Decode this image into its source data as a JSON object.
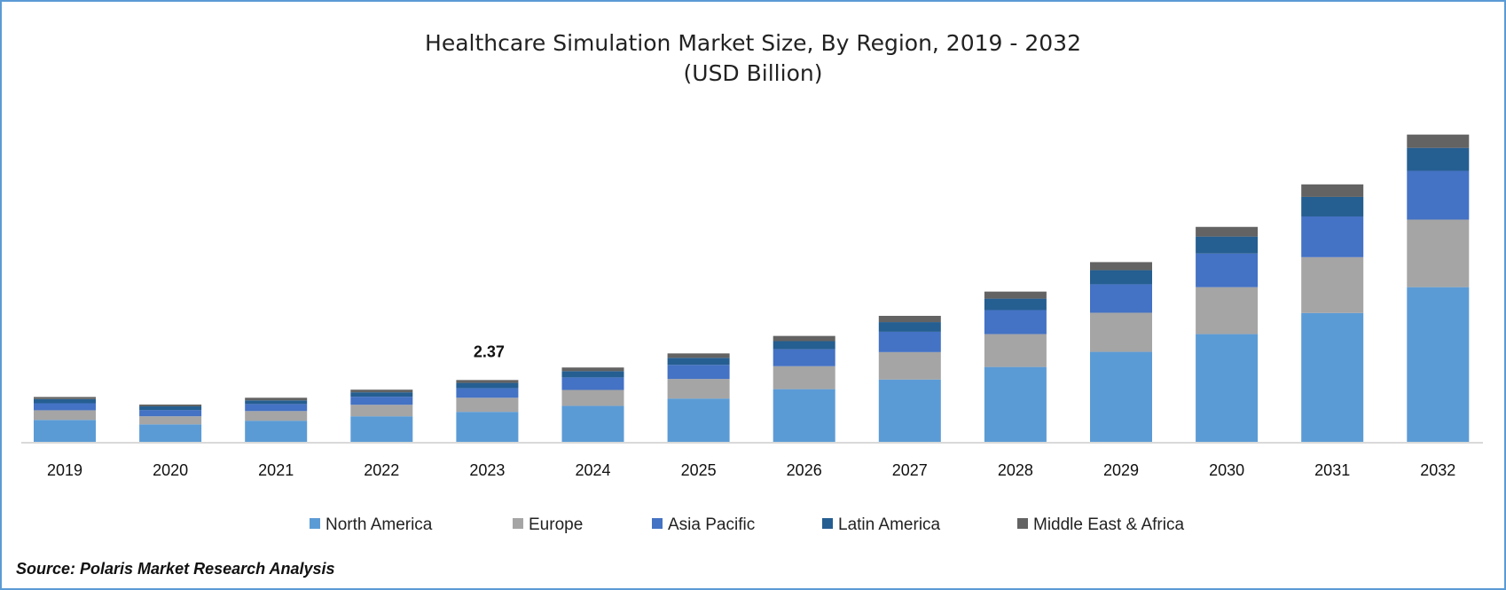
{
  "chart_data": {
    "type": "bar",
    "stacked": true,
    "title": "Healthcare Simulation Market Size, By Region, 2019 - 2032",
    "subtitle": "(USD Billion)",
    "xlabel": "",
    "ylabel": "",
    "categories": [
      "2019",
      "2020",
      "2021",
      "2022",
      "2023",
      "2024",
      "2025",
      "2026",
      "2027",
      "2028",
      "2029",
      "2030",
      "2031",
      "2032"
    ],
    "series": [
      {
        "name": "North America",
        "color": "#5b9bd5",
        "values": [
          0.84,
          0.67,
          0.81,
          0.98,
          1.15,
          1.38,
          1.66,
          2.02,
          2.39,
          2.87,
          3.45,
          4.13,
          4.94,
          5.93
        ]
      },
      {
        "name": "Europe",
        "color": "#a5a5a5",
        "values": [
          0.37,
          0.31,
          0.37,
          0.44,
          0.54,
          0.61,
          0.75,
          0.88,
          1.05,
          1.26,
          1.5,
          1.8,
          2.14,
          2.59
        ]
      },
      {
        "name": "Asia Pacific",
        "color": "#4472c4",
        "values": [
          0.27,
          0.24,
          0.27,
          0.31,
          0.37,
          0.48,
          0.54,
          0.65,
          0.78,
          0.92,
          1.09,
          1.29,
          1.56,
          1.87
        ]
      },
      {
        "name": "Latin America",
        "color": "#255e91",
        "values": [
          0.16,
          0.14,
          0.14,
          0.17,
          0.2,
          0.24,
          0.27,
          0.31,
          0.37,
          0.44,
          0.54,
          0.65,
          0.75,
          0.88
        ]
      },
      {
        "name": "Middle East & Africa",
        "color": "#636363",
        "values": [
          0.08,
          0.07,
          0.1,
          0.1,
          0.11,
          0.14,
          0.17,
          0.2,
          0.24,
          0.27,
          0.31,
          0.37,
          0.48,
          0.51
        ]
      }
    ],
    "annotations": [
      {
        "category": "2023",
        "text": "2.37"
      }
    ],
    "ylim": [
      0,
      12
    ],
    "grid": false,
    "legend": "bottom"
  },
  "source": "Source: Polaris Market Research Analysis"
}
